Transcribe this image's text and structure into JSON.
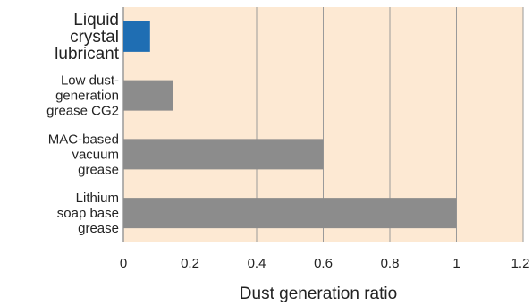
{
  "chart_data": {
    "type": "bar",
    "orientation": "horizontal",
    "categories": [
      [
        "Liquid",
        "crystal",
        "lubricant"
      ],
      [
        "Low dust-",
        "generation",
        "grease CG2"
      ],
      [
        "MAC-based",
        "vacuum",
        "grease"
      ],
      [
        "Lithium",
        "soap base",
        "grease"
      ]
    ],
    "values": [
      0.08,
      0.15,
      0.6,
      1.0
    ],
    "highlight_index": 0,
    "xlabel": "Dust generation ratio",
    "xlim": [
      0,
      1.2
    ],
    "xticks": [
      "0",
      "0.2",
      "0.4",
      "0.6",
      "0.8",
      "1",
      "1.2"
    ],
    "grid": "vertical",
    "colors": {
      "background": "#fde9d3",
      "highlight_bar": "#1f6eb3",
      "bar": "#8c8c8c",
      "grid": "#9a9a9a",
      "highlight_label": "#1f6eb3",
      "label": "#222222"
    }
  }
}
